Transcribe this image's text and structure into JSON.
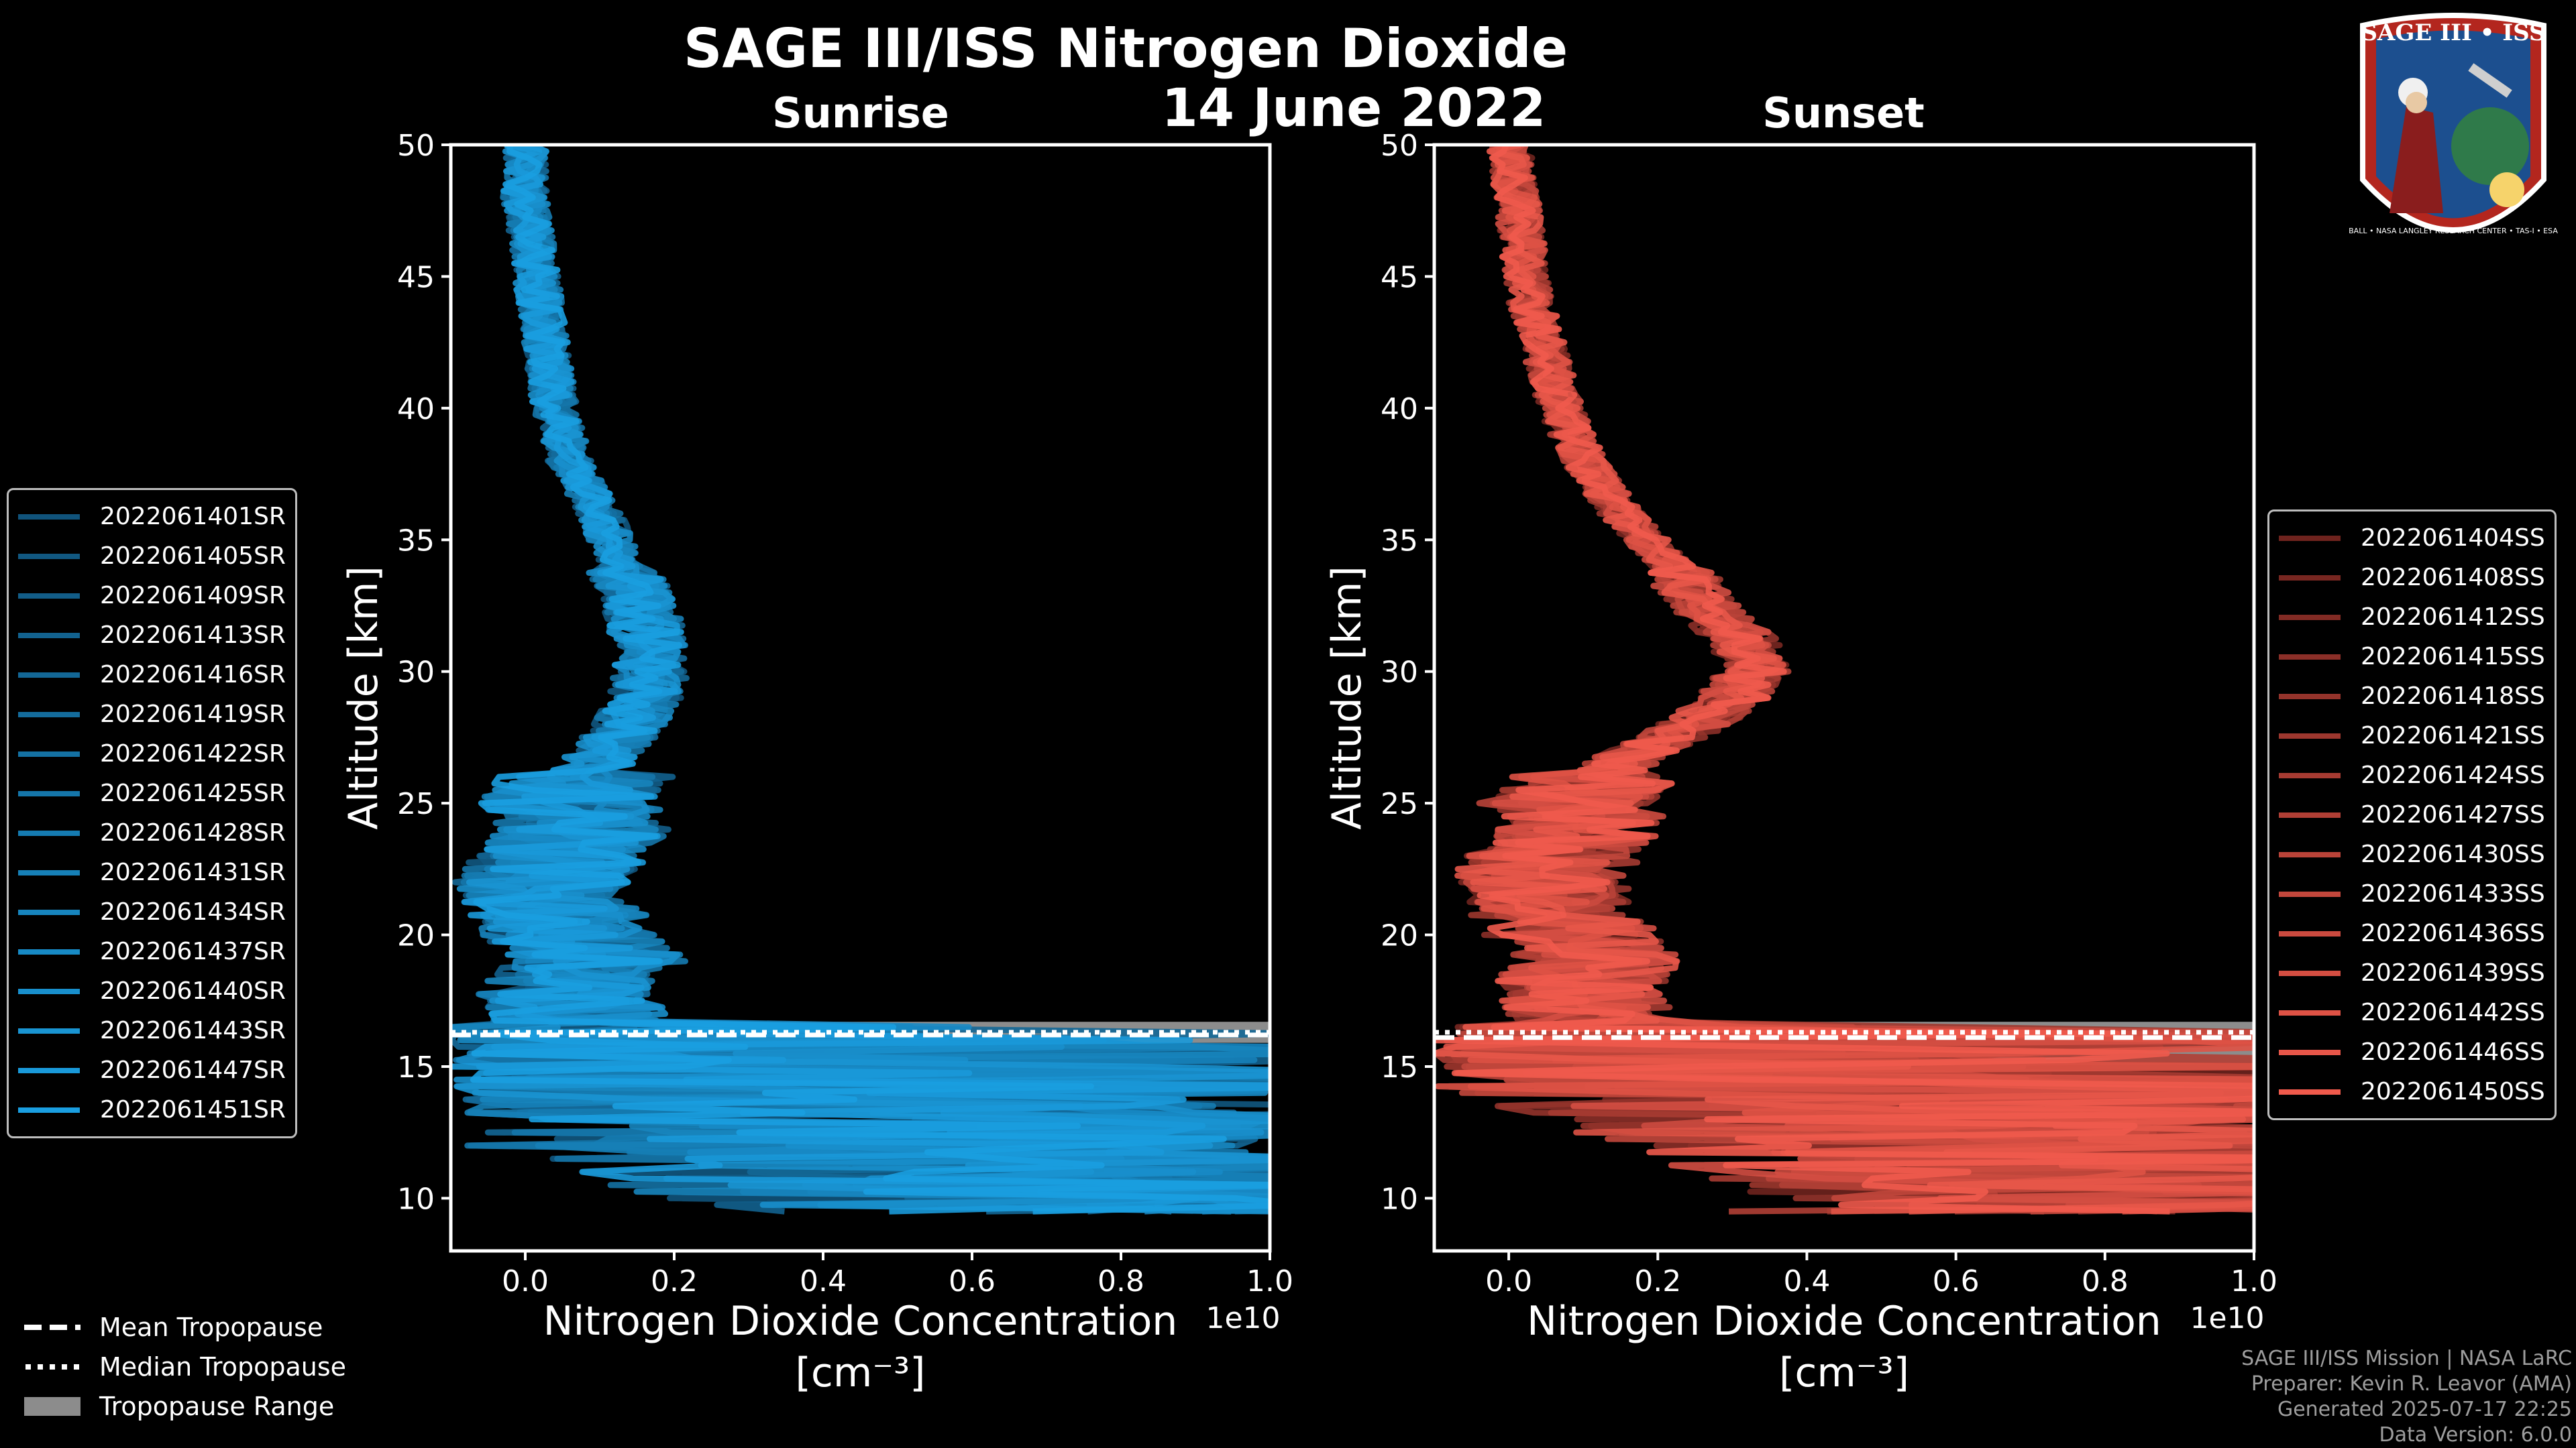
{
  "header": {
    "title": "SAGE III/ISS Nitrogen Dioxide",
    "date": "14 June 2022"
  },
  "colors": {
    "sunrise_accent": "#1a9ee0",
    "sunset_accent": "#f05a4c",
    "background": "#000000",
    "tropopause_range": "#8c8c8c"
  },
  "chart_data": [
    {
      "type": "line",
      "panel": "sunrise",
      "title": "Sunrise",
      "xlabel": "Nitrogen Dioxide Concentration",
      "xlabel_unit": "[cm⁻³]",
      "ylabel": "Altitude [km]",
      "x_multiplier": "1e10",
      "xlim": [
        -0.1,
        1.0
      ],
      "ylim": [
        8,
        50
      ],
      "xticks": [
        "0.0",
        "0.2",
        "0.4",
        "0.6",
        "0.8",
        "1.0"
      ],
      "yticks": [
        "10",
        "15",
        "20",
        "25",
        "30",
        "35",
        "40",
        "45",
        "50"
      ],
      "mean_profile": {
        "altitude_km": [
          50,
          48,
          46,
          44,
          42,
          40,
          38,
          36,
          34,
          32,
          30,
          29,
          28,
          27,
          26,
          25,
          24,
          23,
          22,
          21,
          20,
          19,
          18,
          17,
          16,
          15,
          14,
          13,
          12,
          11,
          10,
          9.5
        ],
        "no2_1e10": [
          0.0,
          0.0,
          0.01,
          0.02,
          0.03,
          0.04,
          0.06,
          0.1,
          0.13,
          0.16,
          0.17,
          0.16,
          0.14,
          0.11,
          0.08,
          0.06,
          0.08,
          0.05,
          0.02,
          0.04,
          0.06,
          0.1,
          0.05,
          0.07,
          0.05,
          0.15,
          0.3,
          0.5,
          0.45,
          0.6,
          0.7,
          0.85
        ]
      },
      "tropopause_km": {
        "mean": 16.2,
        "median": 16.3,
        "min": 15.9,
        "max": 16.7
      },
      "series_names": [
        "2022061401SR",
        "2022061405SR",
        "2022061409SR",
        "2022061413SR",
        "2022061416SR",
        "2022061419SR",
        "2022061422SR",
        "2022061425SR",
        "2022061428SR",
        "2022061431SR",
        "2022061434SR",
        "2022061437SR",
        "2022061440SR",
        "2022061443SR",
        "2022061447SR",
        "2022061451SR"
      ],
      "legend_position": "left"
    },
    {
      "type": "line",
      "panel": "sunset",
      "title": "Sunset",
      "xlabel": "Nitrogen Dioxide Concentration",
      "xlabel_unit": "[cm⁻³]",
      "ylabel": "Altitude [km]",
      "x_multiplier": "1e10",
      "xlim": [
        -0.1,
        1.0
      ],
      "ylim": [
        8,
        50
      ],
      "xticks": [
        "0.0",
        "0.2",
        "0.4",
        "0.6",
        "0.8",
        "1.0"
      ],
      "yticks": [
        "10",
        "15",
        "20",
        "25",
        "30",
        "35",
        "40",
        "45",
        "50"
      ],
      "mean_profile": {
        "altitude_km": [
          50,
          48,
          46,
          44,
          42,
          40,
          38,
          36,
          34,
          32,
          31,
          30,
          29,
          28,
          27,
          26,
          25,
          24,
          23,
          22,
          21,
          20,
          19,
          18,
          17,
          16,
          15,
          14,
          13,
          12,
          11,
          10,
          9.5
        ],
        "no2_1e10": [
          0.0,
          0.01,
          0.02,
          0.03,
          0.05,
          0.07,
          0.1,
          0.15,
          0.22,
          0.28,
          0.32,
          0.33,
          0.3,
          0.25,
          0.18,
          0.12,
          0.08,
          0.1,
          0.06,
          0.04,
          0.06,
          0.08,
          0.12,
          0.09,
          0.1,
          0.12,
          0.25,
          0.4,
          0.55,
          0.6,
          0.75,
          0.9,
          0.8
        ]
      },
      "tropopause_km": {
        "mean": 16.1,
        "median": 16.3,
        "min": 14.9,
        "max": 16.7
      },
      "series_names": [
        "2022061404SS",
        "2022061408SS",
        "2022061412SS",
        "2022061415SS",
        "2022061418SS",
        "2022061421SS",
        "2022061424SS",
        "2022061427SS",
        "2022061430SS",
        "2022061433SS",
        "2022061436SS",
        "2022061439SS",
        "2022061442SS",
        "2022061446SS",
        "2022061450SS"
      ],
      "legend_position": "right"
    }
  ],
  "tropopause_legend": [
    {
      "style": "dashed",
      "label": "Mean Tropopause"
    },
    {
      "style": "dotted",
      "label": "Median Tropopause"
    },
    {
      "style": "range",
      "label": "Tropopause Range"
    }
  ],
  "footer": [
    "SAGE III/ISS Mission | NASA LaRC",
    "Preparer: Kevin R. Leavor (AMA)",
    "Generated 2025-07-17 22:25",
    "Data Version: 6.0.0"
  ],
  "badge": {
    "title": "SAGE III • ISS",
    "ring_text": "BALL • NASA LANGLEY RESEARCH CENTER • TAS-I • ESA"
  }
}
